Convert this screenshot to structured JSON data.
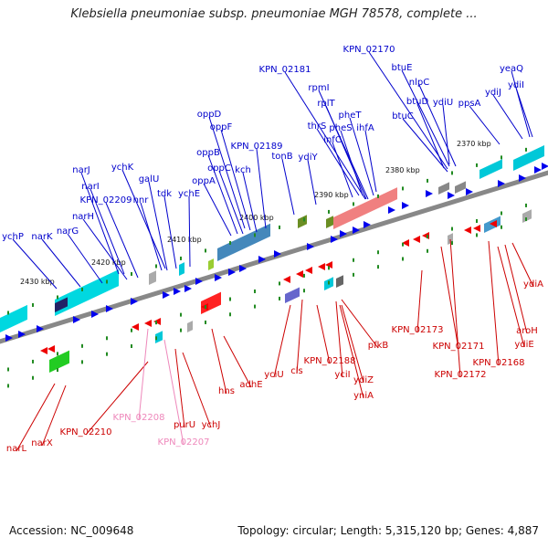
{
  "title": "Klebsiella pneumoniae subsp. pneumoniae MGH 78578, complete ...",
  "footer": {
    "accession": "Accession: NC_009648",
    "topology": "Topology: circular; Length: 5,315,120 bp; Genes: 4,887"
  },
  "colors": {
    "forward_label": "#0000cc",
    "reverse_label": "#cc0000",
    "pseudo_label": "#ee88bb",
    "backbone": "#888888",
    "tick": "#228b22"
  },
  "scale_labels": [
    "2370 kbp",
    "2380 kbp",
    "2390 kbp",
    "2400 kbp",
    "2410 kbp",
    "2420 kbp",
    "2430 kbp"
  ],
  "forward_labels": [
    "KPN_02170",
    "yeaQ",
    "btuE",
    "nlpC",
    "ydiJ",
    "ydiI",
    "btuD",
    "ydiU",
    "ppsA",
    "btuC",
    "KPN_02181",
    "rpmI",
    "rplT",
    "pheT",
    "thrS",
    "pheS",
    "ihfA",
    "infC",
    "oppD",
    "oppF",
    "KPN_02189",
    "tonB",
    "ydiY",
    "oppB",
    "oppC",
    "kch",
    "oppA",
    "ychK",
    "narJ",
    "galU",
    "narI",
    "hnr",
    "tdk",
    "ychE",
    "KPN_02209",
    "narH",
    "narG",
    "narK",
    "ychP"
  ],
  "reverse_labels": [
    "ydiA",
    "aroH",
    "ydiE",
    "KPN_02173",
    "KPN_02171",
    "KPN_02168",
    "KPN_02172",
    "pfkB",
    "KPN_02188",
    "yciU",
    "cls",
    "yciI",
    "ydiZ",
    "yniA",
    "adhE",
    "hns",
    "ychJ",
    "purU",
    "KPN_02210",
    "narX",
    "narL"
  ],
  "pseudo_labels": [
    "KPN_02208",
    "KPN_02207"
  ]
}
